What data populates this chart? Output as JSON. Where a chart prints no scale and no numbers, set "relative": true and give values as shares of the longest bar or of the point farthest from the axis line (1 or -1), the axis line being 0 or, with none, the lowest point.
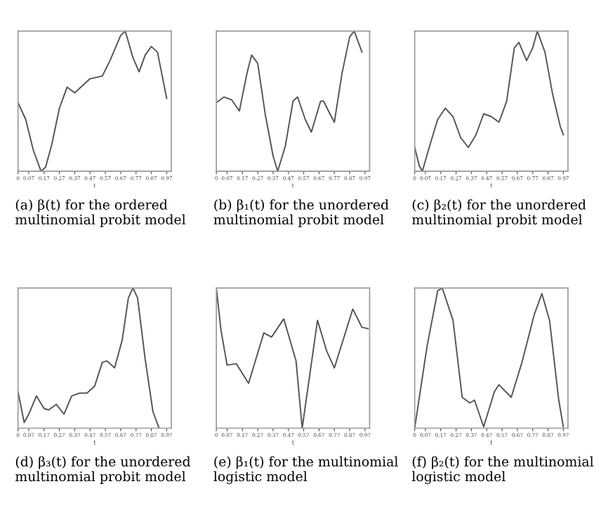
{
  "chart_data": [
    {
      "type": "line",
      "relative": true,
      "xlabel": "t",
      "annotations": [
        "(a) β(t) for the ordered multinomial probit model"
      ],
      "xlim": [
        0,
        1
      ],
      "xticks": [
        0,
        0.07,
        0.17,
        0.27,
        0.37,
        0.47,
        0.57,
        0.67,
        0.77,
        0.87,
        0.97
      ],
      "tick_labels": "x",
      "color": "#555555",
      "x": [
        0,
        0.05,
        0.1,
        0.15,
        0.18,
        0.22,
        0.27,
        0.32,
        0.37,
        0.42,
        0.47,
        0.55,
        0.6,
        0.67,
        0.7,
        0.75,
        0.79,
        0.83,
        0.87,
        0.91,
        0.97
      ],
      "values": [
        0.49,
        0.37,
        0.15,
        0.0,
        0.03,
        0.19,
        0.45,
        0.6,
        0.56,
        0.61,
        0.66,
        0.68,
        0.79,
        0.97,
        1.0,
        0.81,
        0.71,
        0.83,
        0.89,
        0.85,
        0.52
      ]
    },
    {
      "type": "line",
      "relative": true,
      "xlabel": "t",
      "annotations": [
        "(b) β₁(t) for the unordered multinomial probit model"
      ],
      "xlim": [
        0,
        1
      ],
      "xticks": [
        0,
        0.07,
        0.17,
        0.27,
        0.37,
        0.47,
        0.57,
        0.67,
        0.77,
        0.87,
        0.97
      ],
      "tick_labels": "x",
      "color": "#555555",
      "x": [
        0,
        0.05,
        0.1,
        0.15,
        0.2,
        0.23,
        0.27,
        0.32,
        0.37,
        0.4,
        0.45,
        0.5,
        0.53,
        0.58,
        0.62,
        0.68,
        0.7,
        0.75,
        0.77,
        0.82,
        0.87,
        0.9,
        0.95
      ],
      "values": [
        0.49,
        0.53,
        0.51,
        0.43,
        0.7,
        0.83,
        0.77,
        0.4,
        0.11,
        0.0,
        0.18,
        0.5,
        0.53,
        0.37,
        0.28,
        0.5,
        0.5,
        0.39,
        0.35,
        0.7,
        0.96,
        1.0,
        0.85
      ]
    },
    {
      "type": "line",
      "relative": true,
      "xlabel": "t",
      "annotations": [
        "(c) β₂(t) for the unordered multinomial probit model"
      ],
      "xlim": [
        0,
        1
      ],
      "xticks": [
        0,
        0.07,
        0.17,
        0.27,
        0.37,
        0.47,
        0.57,
        0.67,
        0.77,
        0.87,
        0.97
      ],
      "tick_labels": "x",
      "color": "#555555",
      "x": [
        0,
        0.03,
        0.05,
        0.1,
        0.15,
        0.2,
        0.25,
        0.3,
        0.35,
        0.4,
        0.45,
        0.5,
        0.55,
        0.6,
        0.65,
        0.68,
        0.73,
        0.77,
        0.8,
        0.85,
        0.9,
        0.95,
        0.97
      ],
      "values": [
        0.17,
        0.04,
        0.0,
        0.19,
        0.37,
        0.45,
        0.39,
        0.24,
        0.17,
        0.26,
        0.41,
        0.39,
        0.35,
        0.5,
        0.88,
        0.92,
        0.79,
        0.88,
        1.0,
        0.85,
        0.55,
        0.32,
        0.26
      ]
    },
    {
      "type": "line",
      "relative": true,
      "xlabel": "t",
      "annotations": [
        "(d) β₃(t) for the unordered multinomial probit model"
      ],
      "xlim": [
        0,
        1
      ],
      "xticks": [
        0,
        0.07,
        0.17,
        0.27,
        0.37,
        0.47,
        0.57,
        0.67,
        0.77,
        0.87,
        0.97
      ],
      "tick_labels": "x",
      "color": "#555555",
      "x": [
        0,
        0.04,
        0.07,
        0.12,
        0.17,
        0.2,
        0.25,
        0.3,
        0.35,
        0.4,
        0.45,
        0.5,
        0.55,
        0.58,
        0.63,
        0.68,
        0.72,
        0.75,
        0.78,
        0.83,
        0.88,
        0.92
      ],
      "values": [
        0.26,
        0.04,
        0.1,
        0.23,
        0.14,
        0.13,
        0.17,
        0.1,
        0.23,
        0.25,
        0.25,
        0.3,
        0.47,
        0.48,
        0.43,
        0.63,
        0.93,
        1.0,
        0.93,
        0.49,
        0.12,
        0.0
      ]
    },
    {
      "type": "line",
      "relative": true,
      "xlabel": "t",
      "annotations": [
        "(e) β₁(t) for the multinomial logistic model"
      ],
      "xlim": [
        0,
        1
      ],
      "xticks": [
        0,
        0.07,
        0.17,
        0.27,
        0.37,
        0.47,
        0.57,
        0.67,
        0.77,
        0.87,
        0.97
      ],
      "tick_labels": "x",
      "color": "#555555",
      "x": [
        0,
        0.03,
        0.07,
        0.13,
        0.21,
        0.31,
        0.36,
        0.44,
        0.52,
        0.56,
        0.66,
        0.72,
        0.77,
        0.89,
        0.95,
        0.99
      ],
      "values": [
        1.0,
        0.7,
        0.45,
        0.46,
        0.32,
        0.68,
        0.65,
        0.78,
        0.48,
        0.0,
        0.77,
        0.55,
        0.43,
        0.85,
        0.72,
        0.71
      ]
    },
    {
      "type": "line",
      "relative": true,
      "xlabel": "t",
      "annotations": [
        "(f) β₂(t) for the multinomial logistic model"
      ],
      "xlim": [
        0,
        1
      ],
      "xticks": [
        0,
        0.07,
        0.17,
        0.27,
        0.37,
        0.47,
        0.57,
        0.67,
        0.77,
        0.87,
        0.97
      ],
      "tick_labels": "x",
      "color": "#555555",
      "x": [
        0,
        0.08,
        0.15,
        0.18,
        0.25,
        0.31,
        0.36,
        0.39,
        0.45,
        0.52,
        0.55,
        0.63,
        0.7,
        0.78,
        0.83,
        0.88,
        0.94,
        0.97
      ],
      "values": [
        0.0,
        0.58,
        0.98,
        1.0,
        0.77,
        0.22,
        0.18,
        0.2,
        0.01,
        0.26,
        0.31,
        0.22,
        0.47,
        0.81,
        0.96,
        0.77,
        0.2,
        0.01
      ]
    }
  ]
}
